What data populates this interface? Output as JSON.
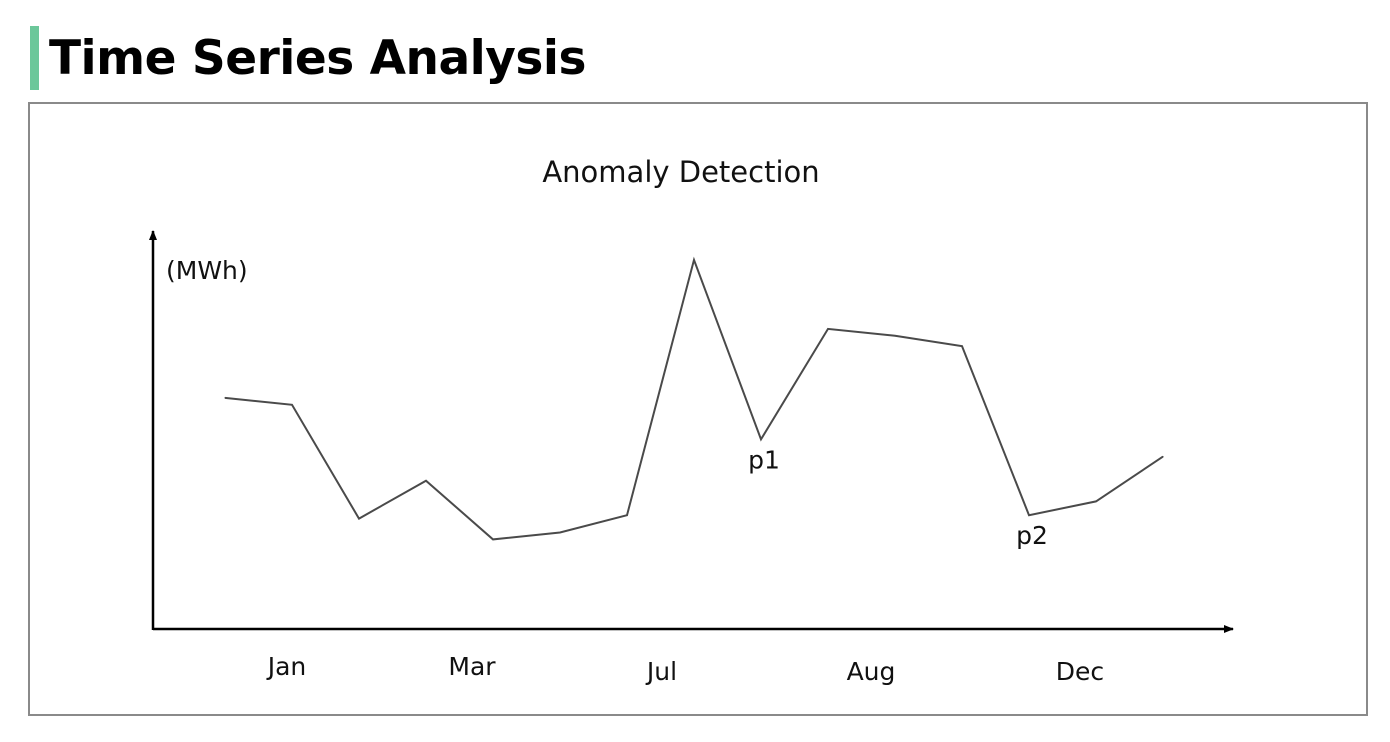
{
  "page": {
    "title": "Time Series Analysis",
    "accent_color": "#6cc79a"
  },
  "chart_data": {
    "type": "line",
    "title": "Anomaly Detection",
    "ylabel": "(MWh)",
    "xlabel": "",
    "x_tick_labels": [
      "Jan",
      "Mar",
      "Jul",
      "Aug",
      "Dec"
    ],
    "y_ticks_shown": false,
    "grid": false,
    "legend": "none",
    "line_color": "#4a4a4a",
    "ylim": [
      0,
      100
    ],
    "series": [
      {
        "values": [
          58,
          56,
          23,
          34,
          17,
          19,
          24,
          98,
          46,
          78,
          76,
          73,
          24,
          28,
          41
        ]
      }
    ],
    "annotations": [
      {
        "label": "p1",
        "point_index": 8
      },
      {
        "label": "p2",
        "point_index": 12
      }
    ]
  }
}
